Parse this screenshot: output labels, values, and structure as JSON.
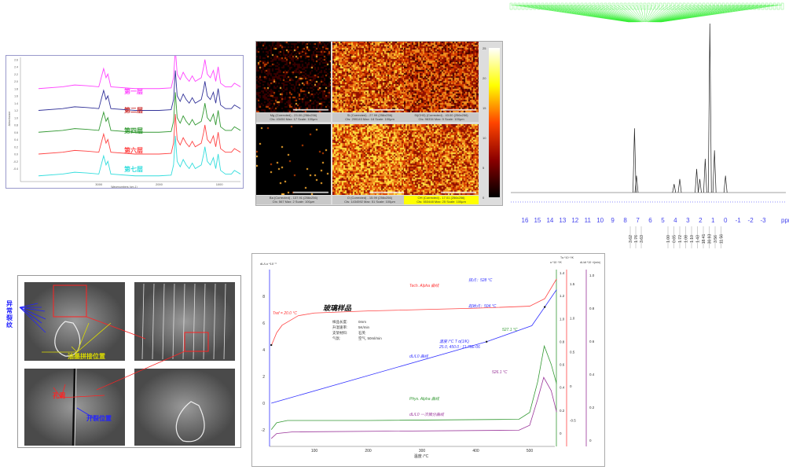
{
  "chart_data": [
    {
      "type": "line",
      "id": "ftir",
      "xlabel": "Wavenumbers (cm-1)",
      "ylabel": "Absorbance",
      "xlim": [
        4300,
        650
      ],
      "ylim": [
        -0.6,
        2.8
      ],
      "x_reversed": true,
      "xticks": [
        "3000",
        "2000",
        "1000"
      ],
      "yticks": [
        "2.6",
        "2.4",
        "2.2",
        "2.0",
        "1.8",
        "1.6",
        "1.4",
        "1.2",
        "1.0",
        "0.8",
        "0.6",
        "0.4",
        "0.2",
        "0.0",
        "-0.2",
        "-0.4"
      ],
      "x": [
        4000,
        3600,
        3400,
        3200,
        3000,
        2960,
        2920,
        2880,
        2850,
        2800,
        2400,
        2000,
        1800,
        1760,
        1730,
        1700,
        1650,
        1600,
        1550,
        1500,
        1450,
        1400,
        1300,
        1260,
        1240,
        1200,
        1150,
        1100,
        1060,
        1020,
        980,
        900,
        800,
        750,
        700,
        650
      ],
      "series": [
        {
          "name": "第一层",
          "color": "#ff44ff",
          "values": [
            1.8,
            1.85,
            1.9,
            1.88,
            1.85,
            2.1,
            2.35,
            2.1,
            2.2,
            1.85,
            1.8,
            1.8,
            1.82,
            2.1,
            2.9,
            2.2,
            2.05,
            2.25,
            2.1,
            2.0,
            2.15,
            2.0,
            2.1,
            2.4,
            2.6,
            2.2,
            2.1,
            2.3,
            2.0,
            2.4,
            1.95,
            1.85,
            1.85,
            1.95,
            1.9,
            1.85
          ]
        },
        {
          "name": "第二层",
          "color": "#333399",
          "label_color": "#cc3333",
          "values": [
            1.2,
            1.25,
            1.3,
            1.28,
            1.25,
            1.5,
            1.75,
            1.5,
            1.6,
            1.25,
            1.2,
            1.2,
            1.22,
            1.5,
            2.3,
            1.6,
            1.45,
            1.65,
            1.5,
            1.4,
            1.55,
            1.4,
            1.5,
            1.8,
            2.0,
            1.6,
            1.5,
            1.7,
            1.4,
            1.8,
            1.35,
            1.25,
            1.25,
            1.35,
            1.3,
            1.25
          ]
        },
        {
          "name": "第四层",
          "color": "#339933",
          "values": [
            0.6,
            0.65,
            0.7,
            0.68,
            0.65,
            0.9,
            1.15,
            0.9,
            1.0,
            0.65,
            0.6,
            0.6,
            0.62,
            0.9,
            1.7,
            1.0,
            0.85,
            1.05,
            0.9,
            0.8,
            0.95,
            0.8,
            0.9,
            1.2,
            1.4,
            1.0,
            0.9,
            1.1,
            0.8,
            1.2,
            0.75,
            0.65,
            0.65,
            0.75,
            0.7,
            0.65
          ]
        },
        {
          "name": "第六层",
          "color": "#ff4444",
          "values": [
            0,
            0.05,
            0.1,
            0.08,
            0.05,
            0.3,
            0.55,
            0.3,
            0.4,
            0.05,
            0,
            0,
            0.02,
            0.3,
            1.1,
            0.4,
            0.25,
            0.45,
            0.3,
            0.2,
            0.35,
            0.2,
            0.3,
            0.6,
            0.8,
            0.4,
            0.3,
            0.5,
            0.2,
            0.6,
            0.15,
            0.05,
            0.05,
            0.15,
            0.1,
            0.05
          ]
        },
        {
          "name": "第七层",
          "color": "#33dddd",
          "values": [
            -0.6,
            -0.55,
            -0.5,
            -0.52,
            -0.55,
            -0.3,
            -0.05,
            -0.3,
            -0.2,
            -0.55,
            -0.6,
            -0.6,
            -0.58,
            -0.3,
            0.5,
            -0.2,
            -0.35,
            -0.15,
            -0.3,
            -0.4,
            -0.25,
            -0.4,
            -0.3,
            0,
            0.2,
            -0.2,
            -0.3,
            -0.1,
            -0.4,
            0,
            -0.45,
            -0.55,
            -0.55,
            -0.45,
            -0.5,
            -0.55
          ]
        }
      ]
    },
    {
      "type": "heatmap",
      "id": "element-maps",
      "colorbar": {
        "ticks": [
          "25",
          "20",
          "15",
          "10",
          "5",
          "0"
        ],
        "range": [
          0,
          25
        ],
        "colors": [
          "#000000",
          "#8b0000",
          "#ff4500",
          "#ffff00",
          "#ffffff"
        ]
      },
      "panels": [
        {
          "element": "Mg",
          "line1": "Mg (Corrected) - 23.00 (256x256)",
          "line2": "Cts: 43450 Max: 17 Scale: 100µm",
          "intensity": 0.25,
          "sparse": true
        },
        {
          "element": "Si",
          "line1": "Si (Corrected) - 27.99 (256x256)",
          "line2": "Cts: 299143 Max: 18 Scale: 100µm",
          "intensity": 0.55
        },
        {
          "element": "Si(CH3)",
          "line1": "Si(CH3) (Corrected) - 43.00 (256x256)",
          "line2": "Cts: 96334 Max: 9 Scale: 100µm",
          "intensity": 0.4
        },
        {
          "element": "Ba",
          "line1": "Ba (Corrected) - 137.91 (256x256)",
          "line2": "Cts: 567 Max: 2 Scale: 100µm",
          "intensity": 0.05,
          "sparse": true
        },
        {
          "element": "O",
          "line1": "O (Corrected) - 15.99 (256x256)",
          "line2": "Cts: 1434592 Max: 51 Scale: 100µm",
          "intensity": 0.8
        },
        {
          "element": "OH",
          "line1": "OH (Corrected) - 17.01 (256x256)",
          "line2": "Cts: 553448 Max: 25 Scale: 100µm",
          "intensity": 0.6,
          "highlight": true
        }
      ]
    },
    {
      "type": "line",
      "id": "nmr",
      "xlabel": "ppm",
      "xlim": [
        16.5,
        -3.5
      ],
      "x_reversed": true,
      "xticks": [
        "16",
        "15",
        "14",
        "13",
        "12",
        "11",
        "10",
        "9",
        "8",
        "7",
        "6",
        "5",
        "4",
        "3",
        "2",
        "1",
        "0",
        "-1",
        "-2",
        "-3"
      ],
      "peaks": [
        {
          "ppm": 7.26,
          "intensity": 0.38
        },
        {
          "ppm": 7.1,
          "intensity": 0.1
        },
        {
          "ppm": 4.1,
          "intensity": 0.05
        },
        {
          "ppm": 3.65,
          "intensity": 0.08
        },
        {
          "ppm": 2.3,
          "intensity": 0.14
        },
        {
          "ppm": 2.05,
          "intensity": 0.08
        },
        {
          "ppm": 1.62,
          "intensity": 0.2
        },
        {
          "ppm": 1.25,
          "intensity": 1.0
        },
        {
          "ppm": 0.88,
          "intensity": 0.25
        },
        {
          "ppm": 0.0,
          "intensity": 0.1
        }
      ],
      "integrals_group1": [
        "3.62",
        "1.76",
        "3.63"
      ],
      "integrals_group2": [
        "1.00",
        "0.65",
        "1.72",
        "1.08",
        "1.10",
        "1.43",
        "18.41",
        "30.93",
        "3.56",
        "11.56"
      ],
      "peak_label_color": "#33ee33"
    },
    {
      "type": "line",
      "id": "dilatometer",
      "title": "玻璃样品",
      "xlabel": "温度 /°C",
      "ylabel": "dL/Lo *10⁻³",
      "xlim": [
        15,
        555
      ],
      "ylim": [
        -3,
        9.5
      ],
      "xticks": [
        "100",
        "200",
        "300",
        "400",
        "500"
      ],
      "yticks": [
        "8",
        "6",
        "4",
        "2",
        "0",
        "-2"
      ],
      "right_axes": [
        {
          "label": "α *10⁻⁵/K",
          "color": "#339933",
          "ticks": [
            "1.4",
            "1.2",
            "1.0",
            "0.8",
            "0.6",
            "0.4",
            "0.2",
            "0"
          ],
          "range": [
            -0.08,
            1.45
          ]
        },
        {
          "label": "Tα *10⁻⁵/K",
          "color": "#ff4444",
          "ticks": [
            "1.5",
            "1.0",
            "0.5",
            "0",
            "-0.5"
          ],
          "range": [
            -0.75,
            1.7
          ]
        },
        {
          "label": "dL/dt *10⁻³/(min)",
          "color": "#993399",
          "ticks": [
            "1.0",
            "0.8",
            "0.6",
            "0.4",
            "0.2",
            "0"
          ],
          "range": [
            -0.03,
            1.03
          ]
        }
      ],
      "info": [
        [
          "样品长度:",
          "0mm"
        ],
        [
          "升温速率:",
          "5K/min"
        ],
        [
          "支架材料:",
          "石英"
        ],
        [
          "气氛:",
          "空气, 50ml/min"
        ]
      ],
      "series": [
        {
          "name": "dL/L0 曲线",
          "color": "#3333ff",
          "axis": "left",
          "points": [
            [
              20,
              0
            ],
            [
              420,
              4.6
            ],
            [
              504,
              5.8
            ],
            [
              528,
              7.2
            ],
            [
              550,
              8.5
            ]
          ]
        },
        {
          "name": "Tech. Alpha 曲线",
          "color": "#ff4444",
          "axis": "red",
          "points": [
            [
              20,
              0.59
            ],
            [
              30,
              0.78
            ],
            [
              40,
              0.89
            ],
            [
              70,
              1.03
            ],
            [
              100,
              1.07
            ],
            [
              200,
              1.1
            ],
            [
              400,
              1.14
            ],
            [
              500,
              1.17
            ],
            [
              528,
              1.28
            ],
            [
              550,
              1.57
            ]
          ]
        },
        {
          "name": "Phys. Alpha 曲线",
          "color": "#339933",
          "axis": "green",
          "points": [
            [
              20,
              0.03
            ],
            [
              30,
              0.09
            ],
            [
              50,
              0.11
            ],
            [
              200,
              0.11
            ],
            [
              480,
              0.12
            ],
            [
              500,
              0.18
            ],
            [
              515,
              0.45
            ],
            [
              527.1,
              0.76
            ],
            [
              540,
              0.6
            ],
            [
              550,
              0.43
            ]
          ]
        },
        {
          "name": "dL/L0 一次微分曲线",
          "color": "#993399",
          "axis": "purple",
          "points": [
            [
              20,
              0.01
            ],
            [
              30,
              0.04
            ],
            [
              60,
              0.05
            ],
            [
              480,
              0.06
            ],
            [
              500,
              0.09
            ],
            [
              515,
              0.25
            ],
            [
              526.1,
              0.38
            ],
            [
              540,
              0.3
            ],
            [
              550,
              0.17
            ]
          ]
        }
      ],
      "annotations": {
        "tref": "Tref = 20.0 °C",
        "inflection": "拐点：528 °C",
        "onset": "起始点：504 °C",
        "table_head": "温度 /°C     T α(1/K)",
        "table_row": "25.0, 450.0 : 11.78E-06",
        "peak_green": "527.1 °C",
        "peak_purple": "526.1 °C"
      }
    }
  ],
  "sem": {
    "labels": {
      "abnormal_crack": "异常裂纹",
      "ink_joint": "油墨拼接位置",
      "hole": "孔洞",
      "crack_position": "开裂位置"
    }
  }
}
